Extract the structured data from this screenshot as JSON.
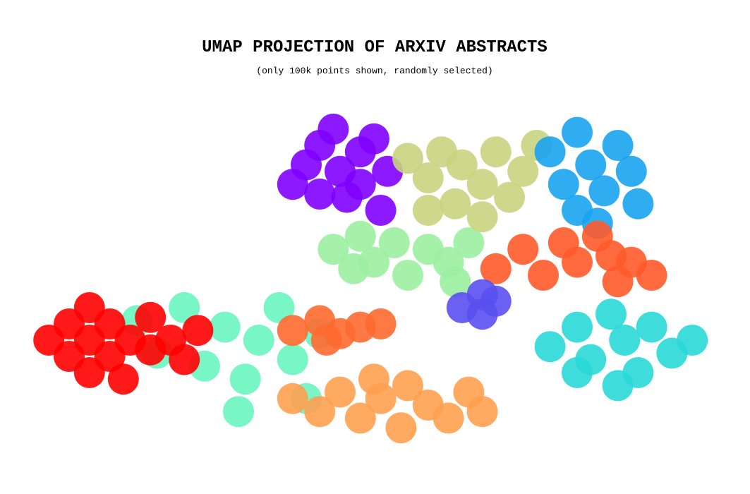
{
  "chart_data": {
    "type": "scatter",
    "title": "UMAP PROJECTION OF ARXIV ABSTRACTS",
    "subtitle": "(only 100k points shown, randomly selected)",
    "xlim": [
      0,
      100
    ],
    "ylim": [
      0,
      100
    ],
    "series": [
      {
        "color": "#6af5c0",
        "x": [
          15,
          18,
          22,
          25,
          28,
          31,
          33,
          36,
          38,
          40,
          42,
          30
        ],
        "values": [
          36,
          26,
          40,
          22,
          34,
          18,
          30,
          40,
          24,
          12,
          32,
          8
        ]
      },
      {
        "color": "#ff0000",
        "x": [
          2,
          5,
          5,
          8,
          8,
          8,
          11,
          11,
          13,
          14,
          17,
          17,
          20,
          22,
          24
        ],
        "values": [
          30,
          25,
          35,
          20,
          30,
          40,
          25,
          35,
          18,
          30,
          27,
          37,
          30,
          24,
          33
        ]
      },
      {
        "color": "#9cf0a0",
        "x": [
          44,
          48,
          50,
          53,
          55,
          58,
          61,
          64,
          62,
          47
        ],
        "values": [
          58,
          62,
          54,
          60,
          50,
          58,
          54,
          60,
          48,
          52
        ]
      },
      {
        "color": "#8000ff",
        "x": [
          38,
          40,
          42,
          44,
          45,
          46,
          48,
          48,
          50,
          51,
          52,
          42
        ],
        "values": [
          78,
          84,
          90,
          95,
          82,
          74,
          88,
          78,
          92,
          70,
          82,
          75
        ]
      },
      {
        "color": "#c9d47f",
        "x": [
          55,
          58,
          60,
          62,
          63,
          66,
          68,
          70,
          72,
          74,
          58,
          66
        ],
        "values": [
          86,
          80,
          88,
          72,
          84,
          78,
          88,
          74,
          82,
          90,
          70,
          68
        ]
      },
      {
        "color": "#1aa3f0",
        "x": [
          76,
          78,
          80,
          80,
          82,
          84,
          86,
          88,
          89,
          83
        ],
        "values": [
          88,
          78,
          94,
          70,
          84,
          76,
          90,
          82,
          72,
          66
        ]
      },
      {
        "color": "#ff5a2a",
        "x": [
          68,
          72,
          75,
          78,
          80,
          83,
          85,
          88,
          91,
          86
        ],
        "values": [
          52,
          58,
          50,
          60,
          54,
          62,
          56,
          54,
          50,
          48
        ]
      },
      {
        "color": "#5a4ff0",
        "x": [
          63,
          66,
          68,
          66
        ],
        "values": [
          40,
          38,
          42,
          44
        ]
      },
      {
        "color": "#2ad8d8",
        "x": [
          76,
          80,
          82,
          85,
          87,
          89,
          91,
          94,
          97,
          86,
          80
        ],
        "values": [
          28,
          34,
          24,
          38,
          30,
          20,
          34,
          26,
          30,
          16,
          20
        ]
      },
      {
        "color": "#ff6a30",
        "x": [
          38,
          42,
          45,
          48,
          51,
          43
        ],
        "values": [
          33,
          36,
          32,
          34,
          35,
          30
        ]
      },
      {
        "color": "#ffa050",
        "x": [
          38,
          42,
          45,
          48,
          51,
          54,
          55,
          58,
          61,
          64,
          66,
          50
        ],
        "values": [
          12,
          8,
          14,
          6,
          12,
          3,
          16,
          10,
          6,
          14,
          8,
          18
        ]
      }
    ]
  }
}
